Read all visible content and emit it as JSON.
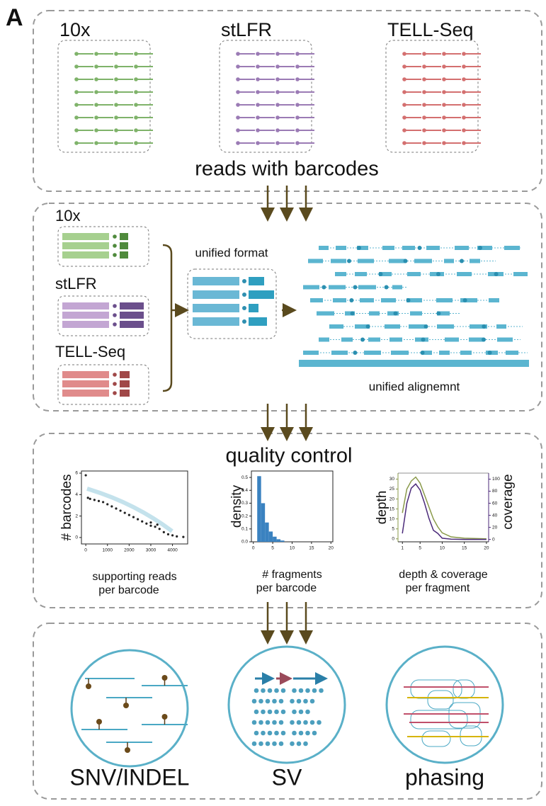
{
  "panel_label": "A",
  "reads": {
    "platforms": [
      "10x",
      "stLFR",
      "TELL-Seq"
    ],
    "caption": "reads with barcodes"
  },
  "unification": {
    "platforms": [
      "10x",
      "stLFR",
      "TELL-Seq"
    ],
    "format_label": "unified format",
    "alignment_label": "unified alignemnt"
  },
  "quality_control": {
    "title": "quality control",
    "charts": [
      {
        "type": "scatter",
        "ylabel": "# barcodes",
        "xlabel": [
          "supporting reads",
          "per barcode"
        ],
        "color": "#222222",
        "x": [
          0,
          100,
          200,
          400,
          600,
          800,
          1000,
          1200,
          1400,
          1600,
          1800,
          2000,
          2200,
          2400,
          2600,
          2800,
          3000,
          3000,
          3200,
          3300,
          3400,
          3600,
          3800,
          4000,
          4200,
          4500
        ],
        "values": [
          5.8,
          3.7,
          3.6,
          3.5,
          3.4,
          3.3,
          3.1,
          2.9,
          2.7,
          2.5,
          2.3,
          2.1,
          1.9,
          1.7,
          1.5,
          1.3,
          1.1,
          1.4,
          1.0,
          1.2,
          0.8,
          0.5,
          0.3,
          0.2,
          0.1,
          0.05
        ],
        "xlim": [
          -200,
          4700
        ],
        "ylim": [
          -0.6,
          6.2
        ],
        "xticks": [
          0,
          1000,
          2000,
          3000,
          4000
        ],
        "yticks": [
          0,
          2,
          4,
          6
        ]
      },
      {
        "type": "histogram",
        "ylabel": "density",
        "xlabel": [
          "# fragments",
          "per barcode"
        ],
        "color": "#3a82c0",
        "bins": [
          1,
          2,
          3,
          4,
          5,
          6,
          7,
          8
        ],
        "values": [
          0.51,
          0.3,
          0.15,
          0.08,
          0.04,
          0.02,
          0.01
        ],
        "xlim": [
          -0.5,
          20.5
        ],
        "ylim": [
          0,
          0.55
        ],
        "xticks": [
          0,
          5,
          10,
          15,
          20
        ],
        "yticks": [
          {
            "value": 0,
            "label": "0.0"
          },
          0.1,
          0.2,
          0.3,
          0.4,
          0.5
        ]
      },
      {
        "type": "line",
        "ylabel": "depth",
        "y2label": "coverage",
        "xlabel": [
          "depth & coverage",
          "per fragment"
        ],
        "x": [
          1,
          2,
          3,
          4,
          5,
          6,
          7,
          8,
          9,
          10,
          12,
          15,
          20
        ],
        "series": [
          {
            "name": "depth",
            "color": "#8a9a4a",
            "values": [
              13,
              25,
              29,
              31,
              28,
              22,
              16,
              10,
              6,
              3,
              1,
              0.3,
              0
            ]
          },
          {
            "name": "coverage",
            "color": "#4b2a7a",
            "axis": "y2",
            "values": [
              10,
              60,
              85,
              92,
              82,
              60,
              35,
              15,
              10,
              2,
              0.5,
              0,
              0
            ]
          }
        ],
        "xlim": [
          0,
          20.5
        ],
        "ylim": [
          -1.5,
          33
        ],
        "y2lim": [
          -4,
          110
        ],
        "xticks": [
          1,
          5,
          10,
          15,
          20
        ],
        "yticks": [
          0,
          5,
          10,
          15,
          20,
          25,
          30
        ],
        "y2ticks": [
          0,
          20,
          40,
          60,
          80,
          100
        ]
      }
    ]
  },
  "applications": {
    "labels": [
      "SNV/INDEL",
      "SV",
      "phasing"
    ]
  }
}
